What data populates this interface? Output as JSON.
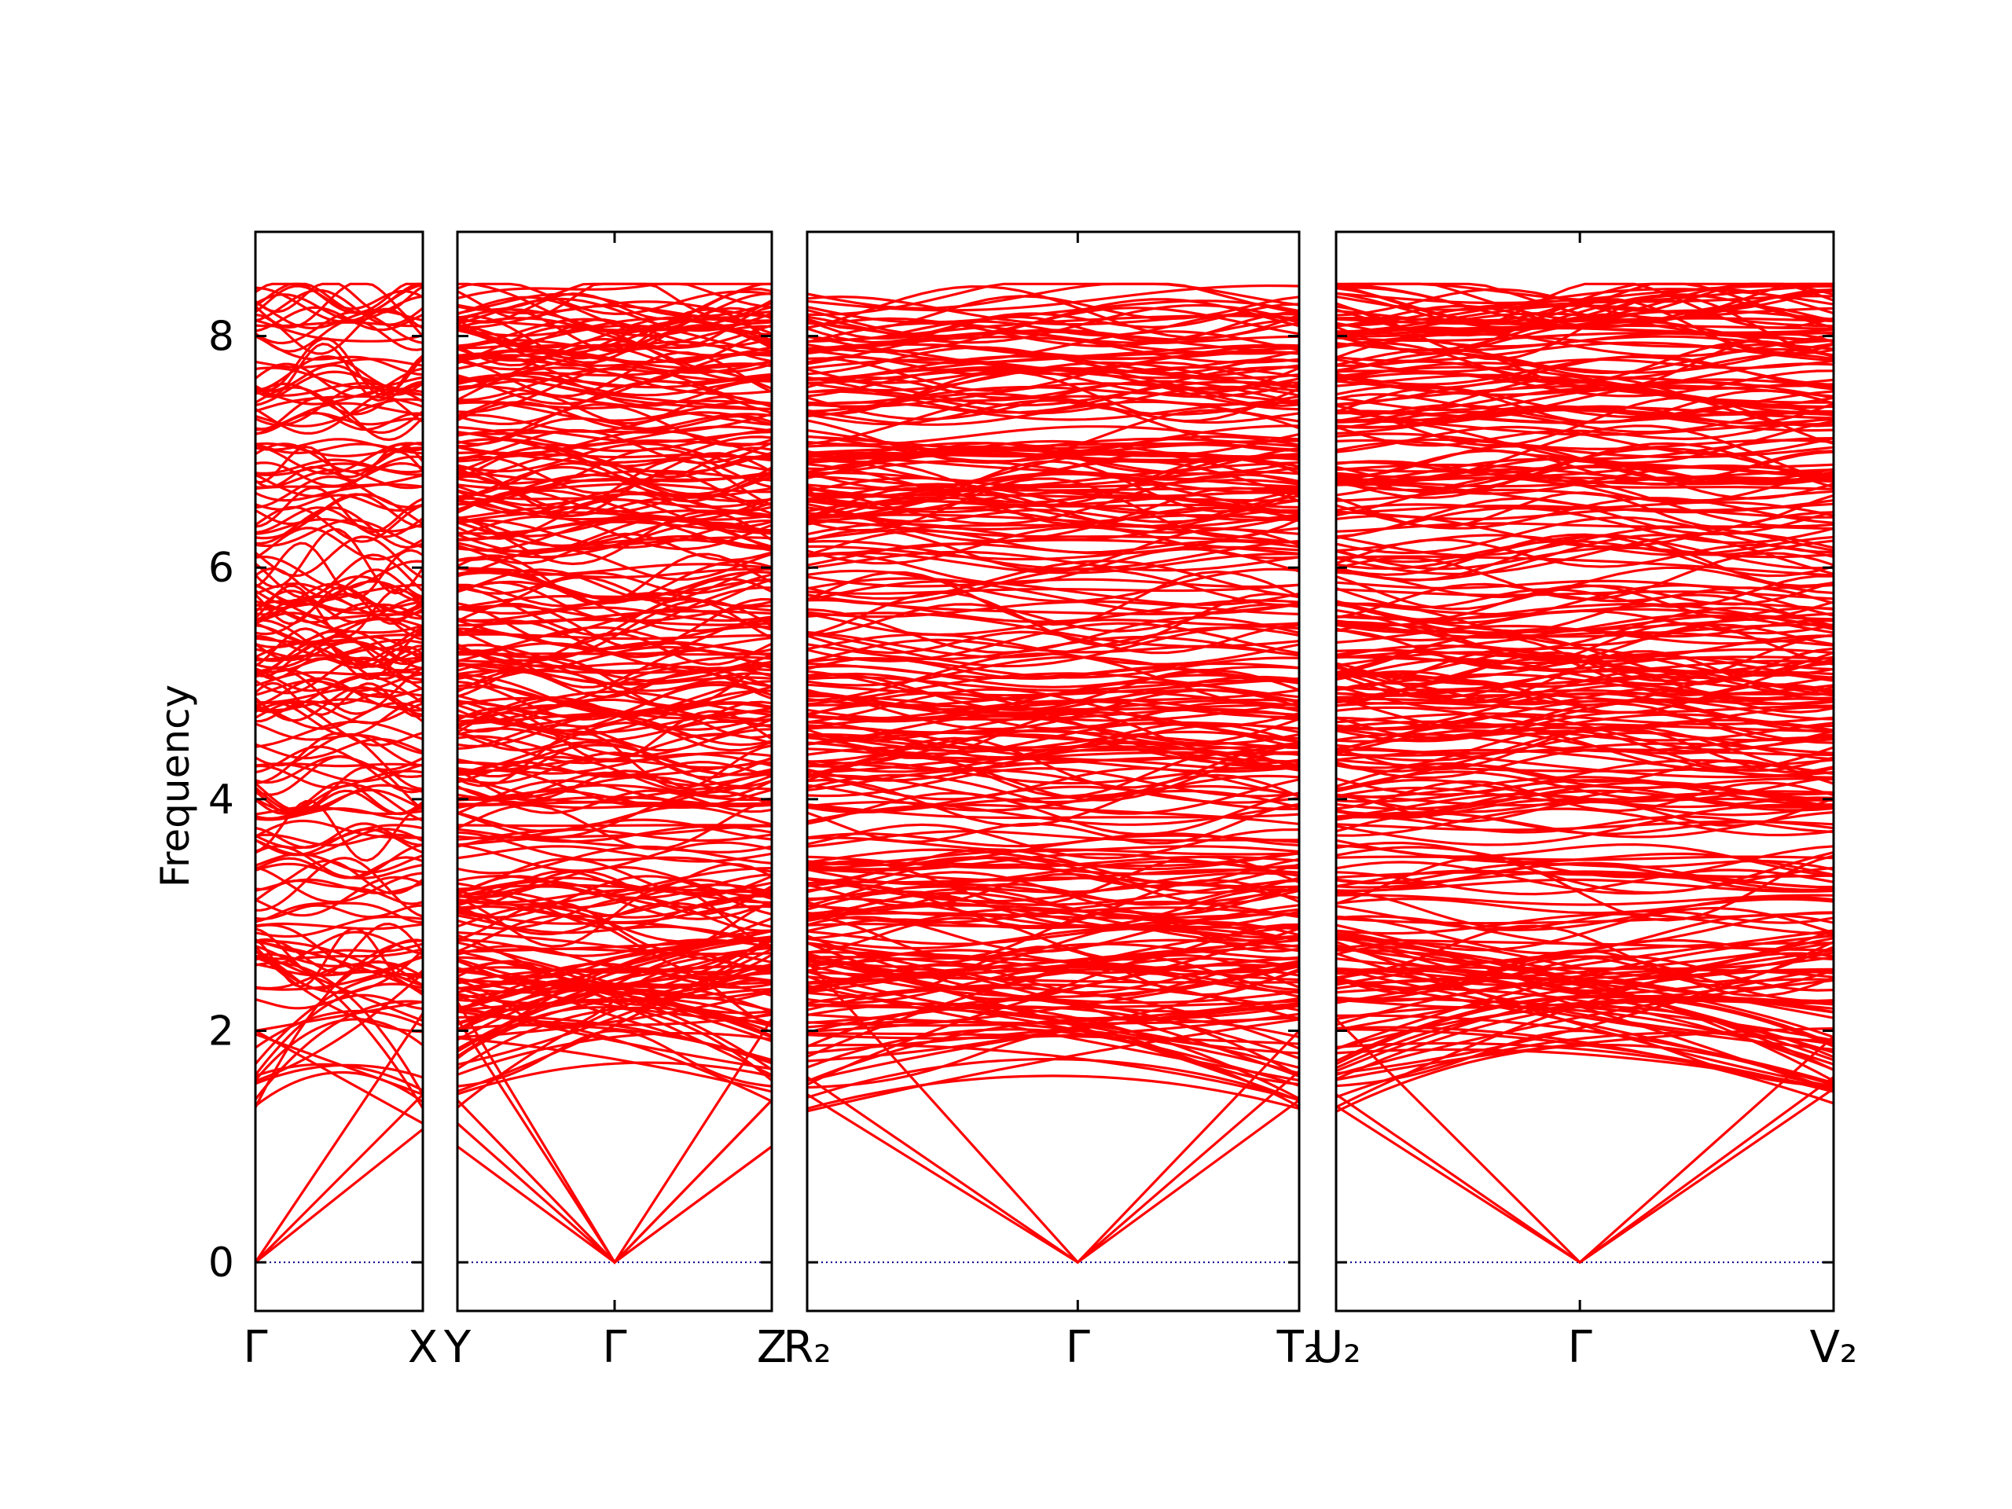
{
  "chart_data": {
    "type": "line",
    "title": "",
    "ylabel": "Frequency",
    "ylim": [
      -0.42,
      8.9
    ],
    "yticks": [
      0,
      2,
      4,
      6,
      8
    ],
    "line_color": "#ff0000",
    "zero_line_color": "#00008b",
    "panels": [
      {
        "name": "gamma-x",
        "kpoints": [
          {
            "label": "Γ",
            "pos": 0
          },
          {
            "label": "X",
            "pos": 1
          }
        ],
        "branches": [
          {
            "start": 0,
            "end": 1.15
          },
          {
            "start": 0,
            "end": 1.45
          },
          {
            "start": 0,
            "end": 2.15
          },
          {
            "start": 2.0,
            "end": 1.2
          },
          {
            "start": 1.97,
            "end": 1.45
          },
          {
            "start": 2.0,
            "end": 2.25
          }
        ]
      },
      {
        "name": "y-gamma-z",
        "kpoints": [
          {
            "label": "Y",
            "pos": 0
          },
          {
            "label": "Γ",
            "pos": 0.5
          },
          {
            "label": "Z",
            "pos": 1
          }
        ],
        "branches": [
          {
            "start": 1.0,
            "end": 1.0
          },
          {
            "start": 1.2,
            "end": 1.4
          },
          {
            "start": 1.4,
            "end": 2.1
          },
          {
            "start": 2.1,
            "end": 1.0
          },
          {
            "start": 2.25,
            "end": 1.4
          }
        ]
      },
      {
        "name": "r2-gamma-t2",
        "kpoints": [
          {
            "label": "R₂",
            "pos": 0
          },
          {
            "label": "Γ",
            "pos": 0.55
          },
          {
            "label": "T₂",
            "pos": 1
          }
        ],
        "branches": [
          {
            "start": 1.45,
            "end": 1.4
          },
          {
            "start": 1.6,
            "end": 1.65
          },
          {
            "start": 2.6,
            "end": 2.0
          }
        ]
      },
      {
        "name": "u2-gamma-v2",
        "kpoints": [
          {
            "label": "U₂",
            "pos": 0
          },
          {
            "label": "Γ",
            "pos": 0.49
          },
          {
            "label": "V₂",
            "pos": 1
          }
        ],
        "branches": [
          {
            "start": 1.35,
            "end": 1.5
          },
          {
            "start": 1.45,
            "end": 1.6
          },
          {
            "start": 2.1,
            "end": 1.95
          }
        ]
      }
    ]
  }
}
